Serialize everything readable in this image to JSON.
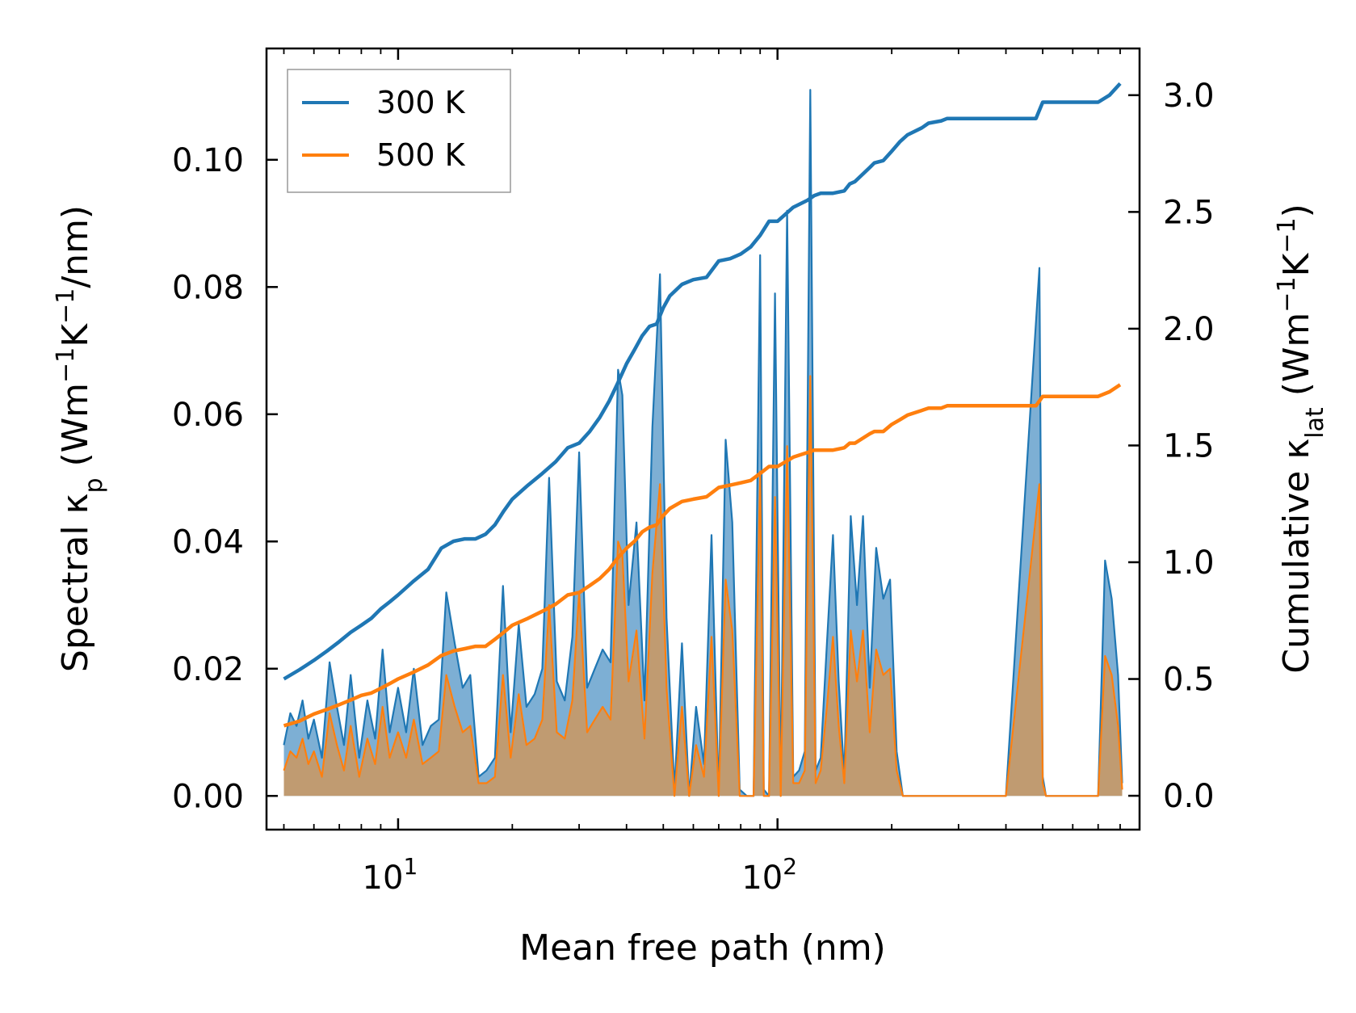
{
  "chart_data": {
    "type": "line",
    "xlabel": "Mean free path (nm)",
    "ylabel_left": {
      "prefix": "Spectral κ",
      "sub": "p",
      "unit_prefix": " (Wm",
      "exp1": "−1",
      "unit_mid": "K",
      "exp2": "−1",
      "unit_suffix": "/nm)"
    },
    "ylabel_right": {
      "prefix": "Cumulative κ",
      "sub": "lat",
      "unit_prefix": " (Wm",
      "exp1": "−1",
      "unit_mid": "K",
      "exp2": "−1",
      "unit_suffix": ")"
    },
    "x_scale": "log",
    "xlim": [
      4.5,
      900
    ],
    "ylim_left": [
      -0.0053,
      0.1175
    ],
    "ylim_right": [
      -0.145,
      3.2
    ],
    "x_ticks": [
      {
        "value": 10,
        "base": "10",
        "exp": "1"
      },
      {
        "value": 100,
        "base": "10",
        "exp": "2"
      }
    ],
    "y_ticks_left": [
      "0.00",
      "0.02",
      "0.04",
      "0.06",
      "0.08",
      "0.10"
    ],
    "y_ticks_right": [
      "0.0",
      "0.5",
      "1.0",
      "1.5",
      "2.0",
      "2.5",
      "3.0"
    ],
    "legend": {
      "position": "top-left",
      "entries": [
        {
          "label": "300 K",
          "color": "#1f77b4"
        },
        {
          "label": "500 K",
          "color": "#ff7f0e"
        }
      ]
    },
    "colors": {
      "c300": "#1f77b4",
      "c500": "#ff7f0e",
      "fill300": "#6fa6cf",
      "fill500": "#c49a6c"
    },
    "spectral_300K": {
      "x": [
        5.0,
        5.2,
        5.4,
        5.6,
        5.8,
        6.0,
        6.3,
        6.6,
        6.9,
        7.2,
        7.5,
        7.9,
        8.3,
        8.7,
        9.1,
        9.5,
        10.0,
        10.5,
        11.0,
        11.6,
        12.2,
        12.8,
        13.4,
        14.1,
        14.8,
        15.5,
        16.3,
        17.1,
        18.0,
        18.9,
        19.8,
        20.8,
        21.8,
        22.9,
        24.0,
        25.0,
        26.2,
        27.5,
        28.8,
        30.0,
        31.5,
        33.0,
        34.6,
        36.3,
        38.0,
        39.0,
        40.5,
        42.5,
        44.6,
        46.8,
        49.0,
        51.0,
        53.5,
        56.0,
        58.5,
        61.0,
        64.0,
        67.0,
        70.0,
        73.0,
        76.0,
        79.5,
        83.0,
        86.5,
        90.0,
        92.0,
        95.0,
        98.5,
        102.0,
        106.0,
        110.0,
        114.0,
        118.0,
        122.0,
        126.0,
        130.0,
        135.0,
        140.0,
        145.0,
        150.0,
        156.0,
        162.0,
        168.0,
        175.0,
        182.0,
        190.0,
        198.0,
        206.0,
        214.0,
        222.0,
        230.0,
        240.0,
        250.0,
        260.0,
        270.0,
        282.0,
        300.0,
        400.0,
        490.0,
        500.0,
        510.0,
        600.0,
        700.0,
        730.0,
        760.0,
        790.0,
        810.0
      ],
      "y": [
        0.008,
        0.013,
        0.011,
        0.015,
        0.009,
        0.012,
        0.006,
        0.021,
        0.014,
        0.008,
        0.019,
        0.006,
        0.015,
        0.009,
        0.023,
        0.01,
        0.017,
        0.01,
        0.02,
        0.008,
        0.011,
        0.012,
        0.032,
        0.024,
        0.017,
        0.019,
        0.003,
        0.004,
        0.006,
        0.033,
        0.01,
        0.027,
        0.014,
        0.016,
        0.02,
        0.05,
        0.018,
        0.015,
        0.025,
        0.054,
        0.017,
        0.02,
        0.023,
        0.021,
        0.067,
        0.063,
        0.03,
        0.043,
        0.015,
        0.058,
        0.082,
        0.028,
        0.001,
        0.024,
        0.0,
        0.014,
        0.005,
        0.041,
        0.0,
        0.056,
        0.043,
        0.001,
        0.0,
        0.0,
        0.085,
        0.001,
        0.0,
        0.079,
        0.0,
        0.092,
        0.003,
        0.004,
        0.007,
        0.111,
        0.004,
        0.006,
        0.024,
        0.041,
        0.018,
        0.003,
        0.044,
        0.03,
        0.044,
        0.017,
        0.039,
        0.031,
        0.034,
        0.007,
        0.0,
        0.0,
        0.0,
        0.0,
        0.0,
        0.0,
        0.0,
        0.0,
        0.0,
        0.0,
        0.083,
        0.003,
        0.0,
        0.0,
        0.0,
        0.037,
        0.031,
        0.019,
        0.002
      ]
    },
    "spectral_500K": {
      "x": [
        5.0,
        5.2,
        5.4,
        5.6,
        5.8,
        6.0,
        6.3,
        6.6,
        6.9,
        7.2,
        7.5,
        7.9,
        8.3,
        8.7,
        9.1,
        9.5,
        10.0,
        10.5,
        11.0,
        11.6,
        12.2,
        12.8,
        13.4,
        14.1,
        14.8,
        15.5,
        16.3,
        17.1,
        18.0,
        18.9,
        19.8,
        20.8,
        21.8,
        22.9,
        24.0,
        25.0,
        26.2,
        27.5,
        28.8,
        30.0,
        31.5,
        33.0,
        34.6,
        36.3,
        38.0,
        39.0,
        40.5,
        42.5,
        44.6,
        46.8,
        49.0,
        51.0,
        53.5,
        56.0,
        58.5,
        61.0,
        64.0,
        67.0,
        70.0,
        73.0,
        76.0,
        79.5,
        83.0,
        86.5,
        90.0,
        92.0,
        95.0,
        98.5,
        102.0,
        106.0,
        110.0,
        114.0,
        118.0,
        122.0,
        126.0,
        130.0,
        135.0,
        140.0,
        145.0,
        150.0,
        156.0,
        162.0,
        168.0,
        175.0,
        182.0,
        190.0,
        198.0,
        206.0,
        214.0,
        222.0,
        230.0,
        240.0,
        250.0,
        260.0,
        270.0,
        282.0,
        300.0,
        400.0,
        490.0,
        500.0,
        510.0,
        600.0,
        700.0,
        730.0,
        760.0,
        790.0,
        810.0
      ],
      "y": [
        0.004,
        0.007,
        0.006,
        0.009,
        0.005,
        0.007,
        0.003,
        0.013,
        0.008,
        0.004,
        0.011,
        0.003,
        0.009,
        0.005,
        0.014,
        0.006,
        0.01,
        0.006,
        0.012,
        0.005,
        0.006,
        0.007,
        0.019,
        0.014,
        0.01,
        0.011,
        0.002,
        0.002,
        0.003,
        0.019,
        0.006,
        0.016,
        0.008,
        0.009,
        0.012,
        0.03,
        0.01,
        0.009,
        0.015,
        0.032,
        0.01,
        0.012,
        0.014,
        0.012,
        0.04,
        0.038,
        0.018,
        0.026,
        0.009,
        0.035,
        0.049,
        0.017,
        0.0,
        0.014,
        0.0,
        0.008,
        0.003,
        0.025,
        0.0,
        0.034,
        0.026,
        0.0,
        0.0,
        0.0,
        0.051,
        0.0,
        0.0,
        0.047,
        0.0,
        0.055,
        0.002,
        0.002,
        0.004,
        0.066,
        0.002,
        0.004,
        0.014,
        0.025,
        0.011,
        0.002,
        0.026,
        0.018,
        0.026,
        0.01,
        0.023,
        0.019,
        0.02,
        0.004,
        0.0,
        0.0,
        0.0,
        0.0,
        0.0,
        0.0,
        0.0,
        0.0,
        0.0,
        0.0,
        0.049,
        0.002,
        0.0,
        0.0,
        0.0,
        0.022,
        0.019,
        0.011,
        0.001
      ]
    },
    "cumulative_300K": {
      "x": [
        5.0,
        5.5,
        6.0,
        6.5,
        7.0,
        7.5,
        8.0,
        8.5,
        9.0,
        9.5,
        10.0,
        11.0,
        12.0,
        13.0,
        14.0,
        15.0,
        16.0,
        17.0,
        18.0,
        19.0,
        20.0,
        22.0,
        24.0,
        26.0,
        28.0,
        30.0,
        32.0,
        34.0,
        36.0,
        38.0,
        40.0,
        42.0,
        44.0,
        46.0,
        48.0,
        50.0,
        52.0,
        56.0,
        60.0,
        65.0,
        70.0,
        75.0,
        80.0,
        85.0,
        90.0,
        95.0,
        100.0,
        110.0,
        120.0,
        125.0,
        130.0,
        140.0,
        150.0,
        155.0,
        160.0,
        175.0,
        180.0,
        190.0,
        200.0,
        210.0,
        220.0,
        240.0,
        250.0,
        270.0,
        280.0,
        300.0,
        480.0,
        500.0,
        700.0,
        750.0,
        800.0
      ],
      "y": [
        0.5,
        0.54,
        0.58,
        0.62,
        0.66,
        0.7,
        0.73,
        0.76,
        0.8,
        0.83,
        0.86,
        0.92,
        0.97,
        1.06,
        1.09,
        1.1,
        1.1,
        1.12,
        1.16,
        1.22,
        1.27,
        1.33,
        1.38,
        1.43,
        1.49,
        1.51,
        1.56,
        1.62,
        1.69,
        1.77,
        1.85,
        1.91,
        1.97,
        2.01,
        2.02,
        2.09,
        2.14,
        2.19,
        2.21,
        2.22,
        2.29,
        2.3,
        2.32,
        2.35,
        2.4,
        2.46,
        2.46,
        2.52,
        2.55,
        2.57,
        2.58,
        2.58,
        2.59,
        2.62,
        2.63,
        2.69,
        2.71,
        2.72,
        2.76,
        2.8,
        2.83,
        2.86,
        2.88,
        2.89,
        2.9,
        2.9,
        2.9,
        2.97,
        2.97,
        3.0,
        3.05
      ]
    },
    "cumulative_500K": {
      "x": [
        5.0,
        5.5,
        6.0,
        6.5,
        7.0,
        7.5,
        8.0,
        8.5,
        9.0,
        9.5,
        10.0,
        11.0,
        12.0,
        13.0,
        14.0,
        15.0,
        16.0,
        17.0,
        18.0,
        19.0,
        20.0,
        22.0,
        24.0,
        26.0,
        28.0,
        30.0,
        32.0,
        34.0,
        36.0,
        38.0,
        40.0,
        42.0,
        44.0,
        46.0,
        48.0,
        50.0,
        52.0,
        56.0,
        60.0,
        65.0,
        70.0,
        75.0,
        80.0,
        85.0,
        90.0,
        95.0,
        100.0,
        110.0,
        120.0,
        125.0,
        130.0,
        140.0,
        150.0,
        155.0,
        160.0,
        175.0,
        180.0,
        190.0,
        200.0,
        210.0,
        220.0,
        240.0,
        250.0,
        270.0,
        280.0,
        300.0,
        480.0,
        500.0,
        700.0,
        750.0,
        800.0
      ],
      "y": [
        0.3,
        0.32,
        0.35,
        0.37,
        0.39,
        0.41,
        0.43,
        0.44,
        0.46,
        0.48,
        0.5,
        0.53,
        0.56,
        0.6,
        0.62,
        0.63,
        0.64,
        0.64,
        0.67,
        0.7,
        0.73,
        0.76,
        0.79,
        0.82,
        0.86,
        0.87,
        0.9,
        0.93,
        0.97,
        1.02,
        1.06,
        1.09,
        1.13,
        1.15,
        1.16,
        1.2,
        1.23,
        1.26,
        1.27,
        1.28,
        1.32,
        1.33,
        1.34,
        1.35,
        1.38,
        1.41,
        1.41,
        1.45,
        1.47,
        1.48,
        1.48,
        1.48,
        1.49,
        1.51,
        1.51,
        1.55,
        1.56,
        1.56,
        1.59,
        1.61,
        1.63,
        1.65,
        1.66,
        1.66,
        1.67,
        1.67,
        1.67,
        1.71,
        1.71,
        1.73,
        1.76
      ]
    }
  }
}
